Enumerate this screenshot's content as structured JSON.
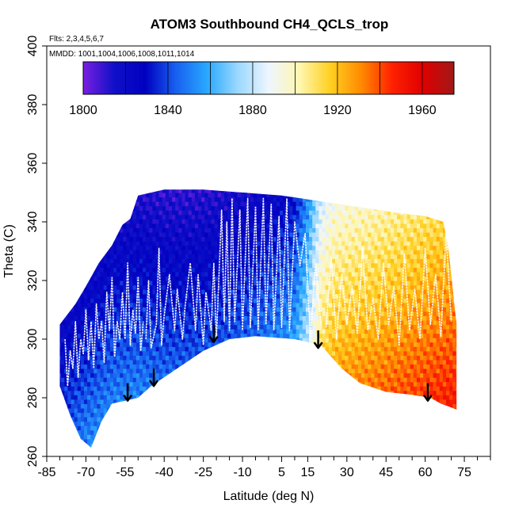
{
  "chart_data": {
    "type": "heatmap",
    "title": "ATOM3 Southbound CH4_QCLS_trop",
    "flights_label": "Flts: 2,3,4,5,6,7",
    "dates_label": "MMDD: 1001,1004,1006,1008,1011,1014",
    "xlabel": "Latitude (deg N)",
    "ylabel": "Theta (C)",
    "xlim": [
      -85,
      85
    ],
    "ylim": [
      260,
      400
    ],
    "x_tick_labels": [
      -85,
      -70,
      -55,
      -40,
      -25,
      -10,
      5,
      15,
      30,
      45,
      60,
      75
    ],
    "y_tick_labels": [
      260,
      280,
      300,
      320,
      340,
      360,
      380,
      400
    ],
    "colorbar": {
      "range": [
        1800,
        1975
      ],
      "tick_labels": [
        1800,
        1840,
        1880,
        1920,
        1960
      ],
      "stops": [
        "#7a1fe0",
        "#1010c8",
        "#0000c0",
        "#1860f0",
        "#28a8ff",
        "#9ad8ff",
        "#eef6ff",
        "#fff6b0",
        "#ffd020",
        "#ff8a00",
        "#ff2000",
        "#e00000",
        "#a01818"
      ]
    },
    "arrows": [
      {
        "lat": -54,
        "theta": 279
      },
      {
        "lat": -44,
        "theta": 284
      },
      {
        "lat": -21,
        "theta": 299
      },
      {
        "lat": 19,
        "theta": 297
      },
      {
        "lat": 61,
        "theta": 279
      }
    ],
    "region": {
      "top": [
        [
          -80,
          305
        ],
        [
          -74,
          312
        ],
        [
          -70,
          318
        ],
        [
          -65,
          326
        ],
        [
          -60,
          332
        ],
        [
          -56,
          339
        ],
        [
          -53,
          341
        ],
        [
          -50,
          349
        ],
        [
          -40,
          351
        ],
        [
          -25,
          351
        ],
        [
          -10,
          350
        ],
        [
          5,
          349
        ],
        [
          20,
          347
        ],
        [
          35,
          345
        ],
        [
          50,
          343
        ],
        [
          60,
          342
        ],
        [
          67,
          340
        ],
        [
          69,
          330
        ],
        [
          72,
          305
        ]
      ],
      "bottom": [
        [
          -80,
          284
        ],
        [
          -76,
          274
        ],
        [
          -72,
          266
        ],
        [
          -68,
          263
        ],
        [
          -64,
          272
        ],
        [
          -60,
          278
        ],
        [
          -55,
          279
        ],
        [
          -50,
          280
        ],
        [
          -45,
          284
        ],
        [
          -35,
          290
        ],
        [
          -25,
          296
        ],
        [
          -15,
          300
        ],
        [
          -5,
          301
        ],
        [
          10,
          300
        ],
        [
          20,
          298
        ],
        [
          28,
          290
        ],
        [
          35,
          285
        ],
        [
          45,
          282
        ],
        [
          55,
          281
        ],
        [
          62,
          280
        ],
        [
          66,
          278
        ],
        [
          72,
          276
        ]
      ]
    },
    "ch4_by_latitude": [
      [
        -80,
        1815
      ],
      [
        -70,
        1823
      ],
      [
        -60,
        1830
      ],
      [
        -50,
        1832
      ],
      [
        -40,
        1830
      ],
      [
        -30,
        1830
      ],
      [
        -20,
        1832
      ],
      [
        -10,
        1835
      ],
      [
        0,
        1840
      ],
      [
        10,
        1848
      ],
      [
        15,
        1870
      ],
      [
        20,
        1900
      ],
      [
        25,
        1910
      ],
      [
        30,
        1912
      ],
      [
        40,
        1916
      ],
      [
        50,
        1920
      ],
      [
        60,
        1924
      ],
      [
        70,
        1928
      ]
    ],
    "vertical_gradient_ppb_per_K": -0.55,
    "flight_tracks": [
      [
        [
          -78,
          300
        ],
        [
          -77,
          284
        ],
        [
          -76,
          296
        ],
        [
          -75,
          290
        ],
        [
          -74,
          306
        ],
        [
          -73,
          287
        ],
        [
          -72,
          300
        ],
        [
          -71,
          295
        ],
        [
          -70,
          310
        ],
        [
          -69,
          293
        ],
        [
          -68,
          306
        ],
        [
          -67,
          290
        ],
        [
          -66,
          312
        ],
        [
          -65,
          300
        ],
        [
          -64,
          306
        ],
        [
          -63,
          292
        ],
        [
          -62,
          316
        ],
        [
          -61,
          303
        ],
        [
          -60,
          321
        ],
        [
          -59,
          294
        ],
        [
          -58,
          306
        ],
        [
          -57,
          300
        ],
        [
          -56,
          316
        ],
        [
          -55,
          300
        ],
        [
          -54,
          326
        ],
        [
          -53,
          298
        ],
        [
          -52,
          310
        ],
        [
          -51,
          302
        ],
        [
          -50,
          321
        ],
        [
          -49,
          296
        ],
        [
          -48,
          306
        ]
      ],
      [
        [
          -47,
          300
        ],
        [
          -46,
          320
        ],
        [
          -45,
          297
        ],
        [
          -43,
          305
        ],
        [
          -42,
          331
        ],
        [
          -41,
          298
        ],
        [
          -40,
          308
        ],
        [
          -38,
          322
        ],
        [
          -36,
          303
        ],
        [
          -35,
          317
        ],
        [
          -33,
          300
        ],
        [
          -32,
          311
        ],
        [
          -30,
          326
        ],
        [
          -28,
          303
        ],
        [
          -27,
          322
        ],
        [
          -25,
          298
        ],
        [
          -24,
          316
        ],
        [
          -22,
          303
        ],
        [
          -21,
          326
        ],
        [
          -20,
          300
        ],
        [
          -18,
          344
        ],
        [
          -17,
          306
        ],
        [
          -16,
          340
        ],
        [
          -15,
          303
        ],
        [
          -14,
          348
        ],
        [
          -13,
          306
        ],
        [
          -11,
          344
        ],
        [
          -10,
          303
        ],
        [
          -8,
          348
        ],
        [
          -7,
          304
        ],
        [
          -5,
          345
        ],
        [
          -4,
          303
        ],
        [
          -2,
          348
        ],
        [
          -1,
          305
        ],
        [
          1,
          346
        ],
        [
          2,
          303
        ],
        [
          4,
          342
        ],
        [
          5,
          304
        ],
        [
          7,
          348
        ],
        [
          8,
          303
        ],
        [
          10,
          340
        ],
        [
          12,
          325
        ],
        [
          14,
          336
        ],
        [
          16,
          300
        ],
        [
          18,
          326
        ],
        [
          20,
          305
        ]
      ],
      [
        [
          22,
          304
        ],
        [
          24,
          328
        ],
        [
          26,
          300
        ],
        [
          28,
          322
        ],
        [
          30,
          305
        ],
        [
          32,
          318
        ],
        [
          34,
          302
        ],
        [
          36,
          331
        ],
        [
          38,
          303
        ],
        [
          40,
          314
        ],
        [
          42,
          300
        ],
        [
          44,
          326
        ],
        [
          46,
          305
        ],
        [
          48,
          318
        ],
        [
          50,
          298
        ],
        [
          52,
          329
        ],
        [
          54,
          303
        ],
        [
          56,
          317
        ],
        [
          58,
          300
        ],
        [
          60,
          331
        ],
        [
          62,
          305
        ],
        [
          64,
          322
        ],
        [
          66,
          301
        ],
        [
          68,
          336
        ],
        [
          70,
          306
        ]
      ]
    ]
  }
}
